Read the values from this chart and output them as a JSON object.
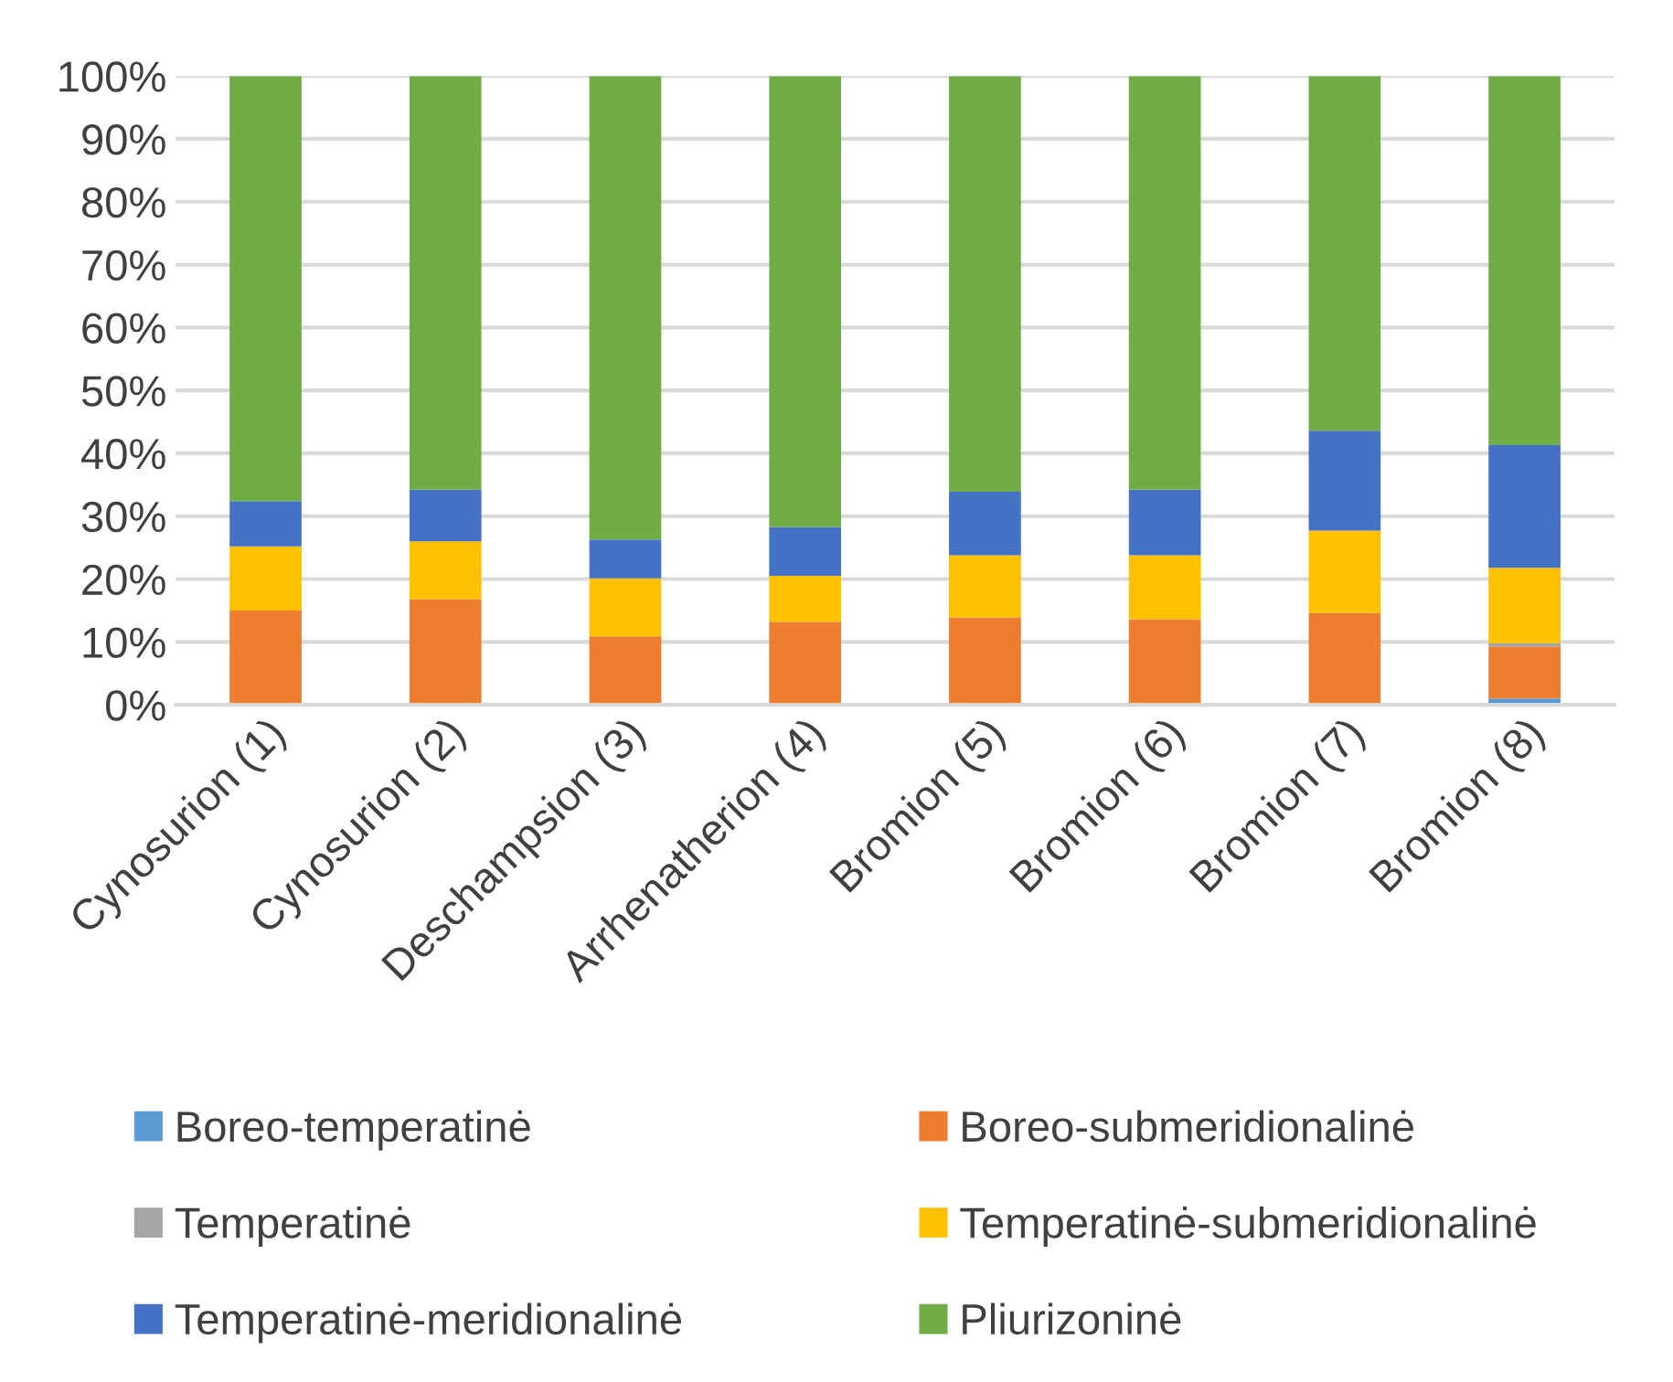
{
  "chart_data": {
    "type": "bar",
    "stacked": true,
    "categories": [
      "Cynosurion (1)",
      "Cynosurion (2)",
      "Deschampsion (3)",
      "Arrhenatherion (4)",
      "Bromion (5)",
      "Bromion (6)",
      "Bromion (7)",
      "Bromion (8)"
    ],
    "series": [
      {
        "name": "Boreo-temperatinė",
        "color": "#5b9bd5",
        "values": [
          0,
          0,
          0,
          0,
          0,
          0,
          0,
          1.0
        ]
      },
      {
        "name": "Boreo-submeridionalinė",
        "color": "#ed7d31",
        "values": [
          15.0,
          16.8,
          10.9,
          13.2,
          13.9,
          13.6,
          14.6,
          8.3
        ]
      },
      {
        "name": "Temperatinė",
        "color": "#a5a5a5",
        "values": [
          0,
          0,
          0,
          0,
          null,
          0,
          null,
          0.5
        ]
      },
      {
        "name": "Temperatinė-submeridionalinė",
        "color": "#ffc000",
        "values": [
          10.2,
          9.2,
          9.2,
          7.3,
          9.9,
          10.2,
          13.1,
          12.0
        ]
      },
      {
        "name": "Temperatinė-meridionalinė",
        "color": "#4472c4",
        "values": [
          7.2,
          8.2,
          6.2,
          7.8,
          10.1,
          10.4,
          15.9,
          19.5
        ]
      },
      {
        "name": "Pliurizoninė",
        "color": "#70ad47",
        "values": [
          67.6,
          65.8,
          73.7,
          71.7,
          66.1,
          65.8,
          56.4,
          58.7
        ]
      }
    ],
    "ylim": [
      0,
      100
    ],
    "yticks": [
      {
        "value": 0,
        "label": "0%"
      },
      {
        "value": 10,
        "label": "10%"
      },
      {
        "value": 20,
        "label": "20%"
      },
      {
        "value": 30,
        "label": "30%"
      },
      {
        "value": 40,
        "label": "40%"
      },
      {
        "value": 50,
        "label": "50%"
      },
      {
        "value": 60,
        "label": "60%"
      },
      {
        "value": 70,
        "label": "70%"
      },
      {
        "value": 80,
        "label": "80%"
      },
      {
        "value": 90,
        "label": "90%"
      },
      {
        "value": 100,
        "label": "100%"
      }
    ],
    "grid": "y",
    "legend": "bottom"
  }
}
